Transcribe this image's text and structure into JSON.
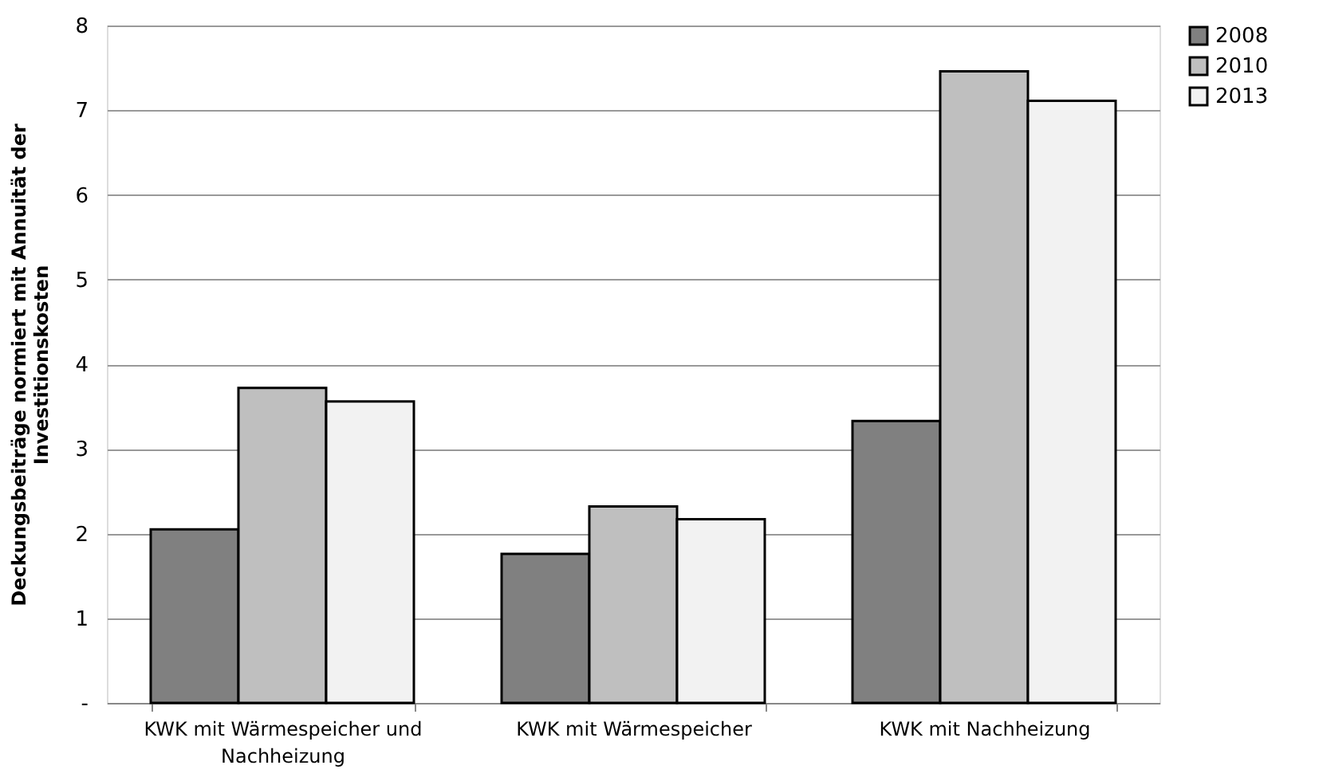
{
  "chart_data": {
    "type": "bar",
    "ylabel": "Deckungsbeiträge normiert mit Annuität der Investitionskosten",
    "categories": [
      "KWK mit Wärmespeicher und Nachheizung",
      "KWK mit Wärmespeicher",
      "KWK mit Nachheizung"
    ],
    "series": [
      {
        "name": "2008",
        "color": "#808080",
        "values": [
          2.05,
          1.76,
          3.33
        ]
      },
      {
        "name": "2010",
        "color": "#bfbfbf",
        "values": [
          3.72,
          2.32,
          7.46
        ]
      },
      {
        "name": "2013",
        "color": "#f2f2f2",
        "values": [
          3.56,
          2.17,
          7.11
        ]
      }
    ],
    "ylim": [
      0,
      8
    ],
    "yticks": [
      {
        "value": 0,
        "label": "-"
      },
      1,
      2,
      3,
      4,
      5,
      6,
      7,
      8
    ],
    "grid": "y",
    "legend": "right"
  }
}
